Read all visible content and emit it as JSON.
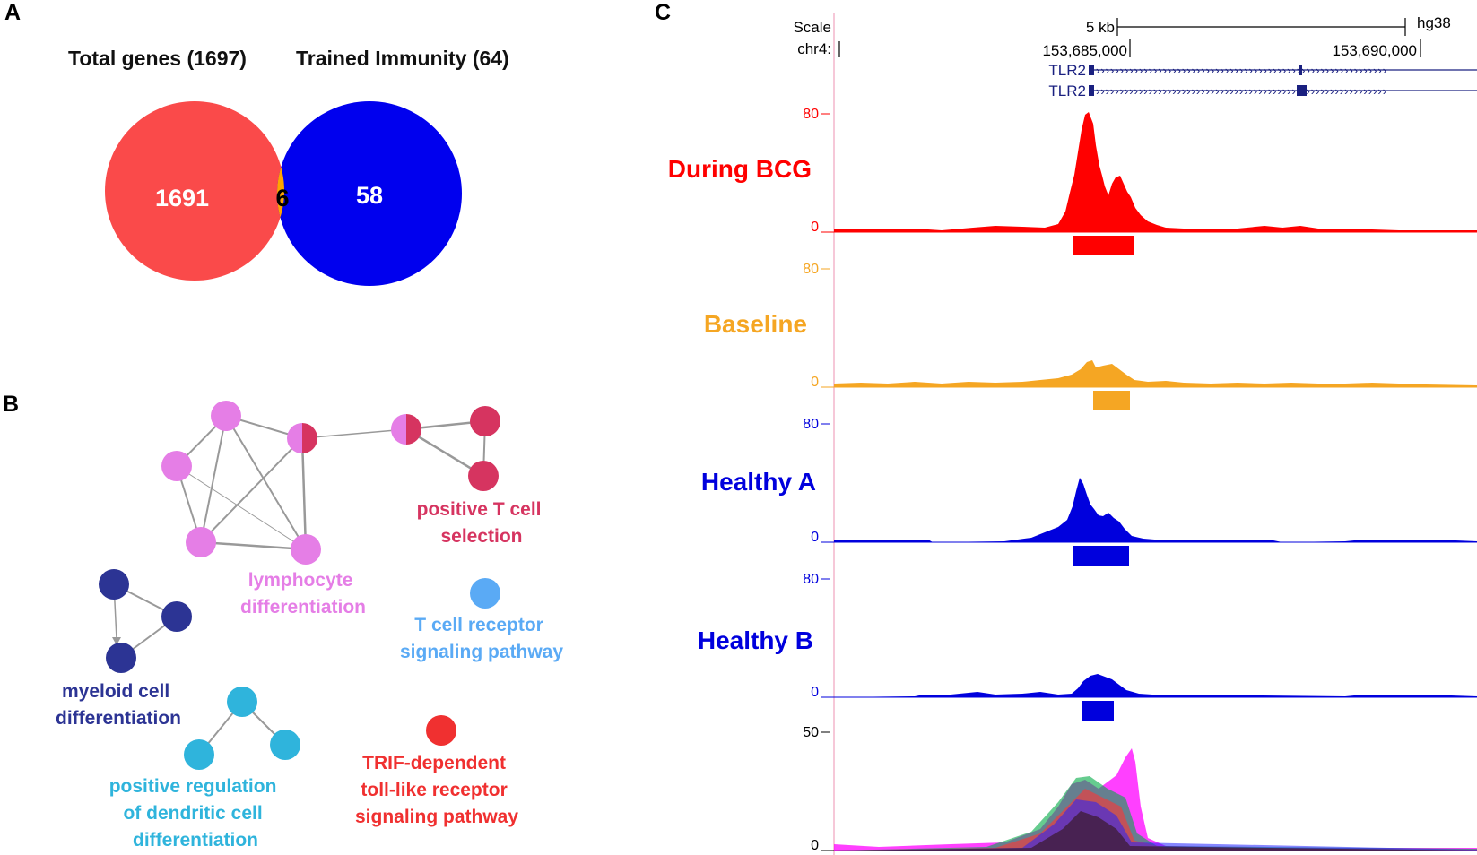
{
  "panels": {
    "a": "A",
    "b": "B",
    "c": "C"
  },
  "venn": {
    "left_title": "Total genes (1697)",
    "right_title": "Trained Immunity (64)",
    "left_only": "1691",
    "overlap": "6",
    "right_only": "58",
    "colors": {
      "left": "#fa4a4a",
      "right": "#0000ee",
      "overlap": "#ffa500"
    }
  },
  "network": {
    "clusters": [
      {
        "label_lines": [
          "lymphocyte",
          "differentiation"
        ],
        "color": "#e57ee6"
      },
      {
        "label_lines": [
          "positive T cell",
          "selection"
        ],
        "color": "#d63460"
      },
      {
        "label_lines": [
          "T cell receptor",
          "signaling pathway"
        ],
        "color": "#5aaaf5"
      },
      {
        "label_lines": [
          "myeloid cell",
          "differentiation"
        ],
        "color": "#2c3494"
      },
      {
        "label_lines": [
          "positive regulation",
          "of dendritic cell",
          "differentiation"
        ],
        "color": "#2fb4dc"
      },
      {
        "label_lines": [
          "TRIF-dependent",
          "toll-like receptor",
          "signaling pathway"
        ],
        "color": "#f03030"
      }
    ]
  },
  "browser": {
    "scale_label": "Scale",
    "chrom_label": "chr4:",
    "scale_bar_label": "5 kb",
    "assembly": "hg38",
    "pos1": "153,685,000",
    "pos2": "153,690,000",
    "genes": [
      "TLR2",
      "TLR2"
    ],
    "tracks": [
      {
        "name": "During BCG",
        "color": "#ff0000",
        "ymax": "80",
        "ymin": "0"
      },
      {
        "name": "Baseline",
        "color": "#f5a623",
        "ymax": "80",
        "ymin": "0"
      },
      {
        "name": "Healthy A",
        "color": "#0000dd",
        "ymax": "80",
        "ymin": "0"
      },
      {
        "name": "Healthy B",
        "color": "#0000dd",
        "ymax": "80",
        "ymin": "0"
      }
    ],
    "overlay": {
      "ymax": "50",
      "ymin": "0",
      "colors": [
        "#ff00ff",
        "#00aa44",
        "#ff3333",
        "#2222ff",
        "#ffaa00"
      ]
    }
  }
}
